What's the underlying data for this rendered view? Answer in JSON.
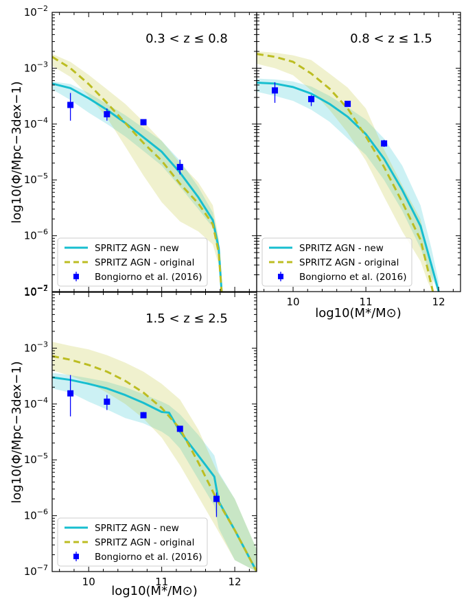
{
  "figure": {
    "ylabel": "log10(Φ/Mpc−3dex−1)",
    "xlabel": "log10(M*/M⊙)"
  },
  "chart_data": [
    {
      "type": "line",
      "annotation": "0.3 < z ≤ 0.8",
      "x_axis": {
        "range": [
          9.5,
          12.3
        ],
        "ticks": [
          10,
          11,
          12
        ],
        "tick_labels_shown": false
      },
      "y_axis": {
        "scale": "log",
        "range": [
          1e-07,
          0.01
        ],
        "ticks": [
          "10^-7",
          "10^-6",
          "10^-5",
          "10^-4",
          "10^-3",
          "10^-2"
        ]
      },
      "series": [
        {
          "name": "SPRITZ AGN - new",
          "style": "line",
          "color": "#17becf",
          "x": [
            9.5,
            9.75,
            10.0,
            10.25,
            10.5,
            10.75,
            11.0,
            11.25,
            11.5,
            11.7,
            11.78,
            11.82
          ],
          "y": [
            0.00053,
            0.00044,
            0.00029,
            0.00018,
            0.000105,
            5.8e-05,
            3.2e-05,
            1.35e-05,
            4.9e-06,
            1.9e-06,
            6e-07,
            1e-07
          ],
          "band_lo": [
            0.00042,
            0.00027,
            0.00016,
            0.0001,
            6e-05,
            3.3e-05,
            1.8e-05,
            7.5e-06,
            3e-06,
            1.4e-06,
            4e-07,
            1e-07
          ],
          "band_hi": [
            0.00058,
            0.00052,
            0.00036,
            0.00023,
            0.000145,
            8.5e-05,
            5e-05,
            2.2e-05,
            7.5e-06,
            2.6e-06,
            8e-07,
            1e-07
          ]
        },
        {
          "name": "SPRITZ AGN - original",
          "style": "dashed",
          "color": "#bcbd22",
          "x": [
            9.5,
            9.75,
            10.0,
            10.25,
            10.5,
            10.75,
            11.0,
            11.25,
            11.5,
            11.7,
            11.78,
            11.82
          ],
          "y": [
            0.0016,
            0.001,
            0.00052,
            0.00024,
            0.000105,
            4.6e-05,
            2.2e-05,
            8.5e-06,
            3.8e-06,
            1.6e-06,
            5e-07,
            1e-07
          ],
          "band_lo": [
            0.0011,
            0.0007,
            0.00032,
            0.00013,
            4e-05,
            1.2e-05,
            4e-06,
            1.8e-06,
            1.2e-06,
            7e-07,
            3e-07,
            1e-07
          ],
          "band_hi": [
            0.0018,
            0.0013,
            0.00076,
            0.00042,
            0.00023,
            0.00011,
            5e-05,
            2e-05,
            9e-06,
            3.5e-06,
            9e-07,
            1e-07
          ]
        },
        {
          "name": "Bongiorno et al. (2016)",
          "style": "points",
          "color": "#0000ff",
          "x": [
            9.75,
            10.25,
            10.75,
            11.25
          ],
          "y": [
            0.00022,
            0.00015,
            0.000108,
            1.7e-05
          ],
          "err_lo": [
            0.000115,
            0.000115,
            9.5e-05,
            1.25e-05
          ],
          "err_hi": [
            0.00036,
            0.00019,
            0.00012,
            2.3e-05
          ]
        }
      ],
      "legend": [
        "SPRITZ AGN - new",
        "SPRITZ AGN - original",
        "Bongiorno et al. (2016)"
      ],
      "legend_position": "bottom-left"
    },
    {
      "type": "line",
      "annotation": "0.8 < z ≤ 1.5",
      "x_axis": {
        "range": [
          9.5,
          12.3
        ],
        "ticks": [
          10,
          11,
          12
        ]
      },
      "y_axis": {
        "scale": "log",
        "range": [
          1e-07,
          0.01
        ],
        "tick_labels_shown": false
      },
      "series": [
        {
          "name": "SPRITZ AGN - new",
          "style": "line",
          "color": "#17becf",
          "x": [
            9.5,
            9.75,
            10.0,
            10.25,
            10.5,
            10.75,
            11.0,
            11.25,
            11.5,
            11.75,
            11.9,
            12.0
          ],
          "y": [
            0.00055,
            0.00053,
            0.00046,
            0.00035,
            0.00023,
            0.000135,
            6.6e-05,
            2.4e-05,
            6.6e-06,
            1.5e-06,
            3e-07,
            1e-07
          ],
          "band_lo": [
            0.00038,
            0.00032,
            0.00026,
            0.00018,
            0.00011,
            5.5e-05,
            2.8e-05,
            1e-05,
            2.8e-06,
            6e-07,
            1.8e-07,
            1e-07
          ],
          "band_hi": [
            0.00065,
            0.00063,
            0.00058,
            0.00047,
            0.00032,
            0.0002,
            0.00012,
            5.5e-05,
            1.8e-05,
            3.5e-06,
            6e-07,
            1.5e-07
          ]
        },
        {
          "name": "SPRITZ AGN - original",
          "style": "dashed",
          "color": "#bcbd22",
          "x": [
            9.5,
            9.75,
            10.0,
            10.25,
            10.5,
            10.75,
            11.0,
            11.25,
            11.5,
            11.75,
            11.85,
            11.92
          ],
          "y": [
            0.0018,
            0.0016,
            0.0013,
            0.0008,
            0.00043,
            0.00019,
            6e-05,
            1.7e-05,
            4e-06,
            8.5e-07,
            2.5e-07,
            1e-07
          ],
          "band_lo": [
            0.0012,
            0.001,
            0.00075,
            0.0004,
            0.00018,
            7e-05,
            2.2e-05,
            5e-06,
            1.2e-06,
            3.5e-07,
            1.5e-07,
            1e-07
          ],
          "band_hi": [
            0.002,
            0.0019,
            0.0017,
            0.0014,
            0.0008,
            0.00045,
            0.00019,
            3.5e-05,
            8e-06,
            2e-06,
            5e-07,
            2e-07
          ]
        },
        {
          "name": "Bongiorno et al. (2016)",
          "style": "points",
          "color": "#0000ff",
          "x": [
            9.75,
            10.25,
            10.75,
            11.25
          ],
          "y": [
            0.0004,
            0.00028,
            0.00023,
            4.5e-05
          ],
          "err_lo": [
            0.00024,
            0.00021,
            0.000205,
            3.9e-05
          ],
          "err_hi": [
            0.00056,
            0.00033,
            0.00026,
            5.2e-05
          ]
        }
      ],
      "legend": [
        "SPRITZ AGN - new",
        "SPRITZ AGN - original",
        "Bongiorno et al. (2016)"
      ],
      "legend_position": "bottom-left"
    },
    {
      "type": "line",
      "annotation": "1.5 < z ≤ 2.5",
      "x_axis": {
        "range": [
          9.5,
          12.3
        ],
        "ticks": [
          10,
          11,
          12
        ]
      },
      "y_axis": {
        "scale": "log",
        "range": [
          1e-07,
          0.01
        ],
        "ticks": [
          "10^-7",
          "10^-6",
          "10^-5",
          "10^-4",
          "10^-3",
          "10^-2"
        ]
      },
      "series": [
        {
          "name": "SPRITZ AGN - new",
          "style": "line",
          "color": "#17becf",
          "x": [
            9.5,
            9.75,
            10.0,
            10.25,
            10.5,
            10.75,
            11.0,
            11.1,
            11.25,
            11.5,
            11.72,
            11.78,
            12.0,
            12.3
          ],
          "y": [
            0.0003,
            0.00027,
            0.00023,
            0.00019,
            0.000145,
            0.000105,
            7.2e-05,
            7e-05,
            3.2e-05,
            1.2e-05,
            5e-06,
            1.8e-06,
            5.5e-07,
            1e-07
          ],
          "band_lo": [
            0.00019,
            0.00016,
            0.00011,
            8e-05,
            5.6e-05,
            4.5e-05,
            3.2e-05,
            2.6e-05,
            1.6e-05,
            4.5e-06,
            1.5e-06,
            6e-07,
            1.6e-07,
            1e-07
          ],
          "band_hi": [
            0.00036,
            0.00033,
            0.00029,
            0.00025,
            0.0002,
            0.00015,
            0.00011,
            9.5e-05,
            6.5e-05,
            2.8e-05,
            1.2e-05,
            6e-06,
            2e-06,
            2.5e-07
          ]
        },
        {
          "name": "SPRITZ AGN - original",
          "style": "dashed",
          "color": "#bcbd22",
          "x": [
            9.5,
            9.75,
            10.0,
            10.25,
            10.5,
            10.75,
            11.0,
            11.25,
            11.5,
            11.75,
            12.0,
            12.3
          ],
          "y": [
            0.00072,
            0.00062,
            0.0005,
            0.00038,
            0.00026,
            0.00016,
            8.5e-05,
            3.6e-05,
            9e-06,
            2e-06,
            5.5e-07,
            1e-07
          ],
          "band_lo": [
            0.0004,
            0.00032,
            0.00024,
            0.00016,
            0.0001,
            5.5e-05,
            2.5e-05,
            8e-06,
            2.2e-06,
            6e-07,
            1.6e-07,
            1e-07
          ],
          "band_hi": [
            0.0013,
            0.0011,
            0.00095,
            0.00075,
            0.00055,
            0.00038,
            0.00023,
            0.00012,
            3.5e-05,
            6.5e-06,
            2e-06,
            2.5e-07
          ]
        },
        {
          "name": "Bongiorno et al. (2016)",
          "style": "points",
          "color": "#0000ff",
          "x": [
            9.75,
            10.25,
            10.75,
            11.25,
            11.75
          ],
          "y": [
            0.000155,
            0.00011,
            6.3e-05,
            3.6e-05,
            2e-06
          ],
          "err_lo": [
            6e-05,
            7.8e-05,
            5.6e-05,
            3.35e-05,
            9.5e-07
          ],
          "err_hi": [
            0.00033,
            0.000145,
            7.2e-05,
            3.9e-05,
            2.6e-06
          ]
        }
      ],
      "legend": [
        "SPRITZ AGN - new",
        "SPRITZ AGN - original",
        "Bongiorno et al. (2016)"
      ],
      "legend_position": "bottom-left"
    }
  ]
}
